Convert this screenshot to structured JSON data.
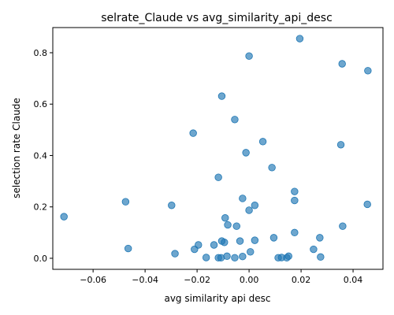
{
  "chart_data": {
    "type": "scatter",
    "title": "selrate_Claude vs avg_similarity_api_desc",
    "xlabel": "avg similarity api desc",
    "ylabel": "selection rate Claude",
    "xlim": [
      -0.0755,
      0.0515
    ],
    "ylim": [
      -0.043,
      0.898
    ],
    "xticks": [
      -0.06,
      -0.04,
      -0.02,
      0.0,
      0.02,
      0.04
    ],
    "xtick_labels": [
      "−0.06",
      "−0.04",
      "−0.02",
      "0.00",
      "0.02",
      "0.04"
    ],
    "yticks": [
      0.0,
      0.2,
      0.4,
      0.6,
      0.8
    ],
    "ytick_labels": [
      "0.0",
      "0.2",
      "0.4",
      "0.6",
      "0.8"
    ],
    "grid": false,
    "marker_color": "#1f77b4",
    "marker_alpha": 0.65,
    "points": [
      {
        "x": 0.0195,
        "y": 0.855
      },
      {
        "x": 0.0,
        "y": 0.787
      },
      {
        "x": 0.0358,
        "y": 0.757
      },
      {
        "x": 0.0457,
        "y": 0.73
      },
      {
        "x": -0.0105,
        "y": 0.631
      },
      {
        "x": -0.0055,
        "y": 0.54
      },
      {
        "x": -0.0215,
        "y": 0.487
      },
      {
        "x": 0.0053,
        "y": 0.454
      },
      {
        "x": 0.0353,
        "y": 0.442
      },
      {
        "x": -0.0012,
        "y": 0.411
      },
      {
        "x": 0.0088,
        "y": 0.353
      },
      {
        "x": -0.0118,
        "y": 0.315
      },
      {
        "x": 0.0175,
        "y": 0.26
      },
      {
        "x": -0.0025,
        "y": 0.233
      },
      {
        "x": 0.0175,
        "y": 0.225
      },
      {
        "x": -0.0712,
        "y": 0.162
      },
      {
        "x": -0.0475,
        "y": 0.22
      },
      {
        "x": -0.0298,
        "y": 0.206
      },
      {
        "x": 0.0455,
        "y": 0.21
      },
      {
        "x": 0.0022,
        "y": 0.206
      },
      {
        "x": 0.0,
        "y": 0.187
      },
      {
        "x": -0.0092,
        "y": 0.157
      },
      {
        "x": -0.0082,
        "y": 0.13
      },
      {
        "x": -0.0048,
        "y": 0.125
      },
      {
        "x": 0.036,
        "y": 0.125
      },
      {
        "x": 0.0175,
        "y": 0.1
      },
      {
        "x": 0.0095,
        "y": 0.08
      },
      {
        "x": 0.0272,
        "y": 0.08
      },
      {
        "x": 0.0022,
        "y": 0.07
      },
      {
        "x": -0.0035,
        "y": 0.067
      },
      {
        "x": -0.0105,
        "y": 0.067
      },
      {
        "x": -0.0095,
        "y": 0.062
      },
      {
        "x": -0.0195,
        "y": 0.052
      },
      {
        "x": -0.0135,
        "y": 0.052
      },
      {
        "x": -0.0465,
        "y": 0.038
      },
      {
        "x": -0.021,
        "y": 0.035
      },
      {
        "x": 0.0248,
        "y": 0.035
      },
      {
        "x": -0.0285,
        "y": 0.018
      },
      {
        "x": 0.0005,
        "y": 0.025
      },
      {
        "x": -0.0085,
        "y": 0.008
      },
      {
        "x": -0.0025,
        "y": 0.007
      },
      {
        "x": 0.0152,
        "y": 0.008
      },
      {
        "x": -0.0165,
        "y": 0.003
      },
      {
        "x": -0.0118,
        "y": 0.002
      },
      {
        "x": -0.0108,
        "y": 0.002
      },
      {
        "x": -0.0055,
        "y": 0.002
      },
      {
        "x": 0.0112,
        "y": 0.002
      },
      {
        "x": 0.0125,
        "y": 0.003
      },
      {
        "x": 0.0145,
        "y": 0.002
      },
      {
        "x": 0.0275,
        "y": 0.005
      }
    ]
  }
}
